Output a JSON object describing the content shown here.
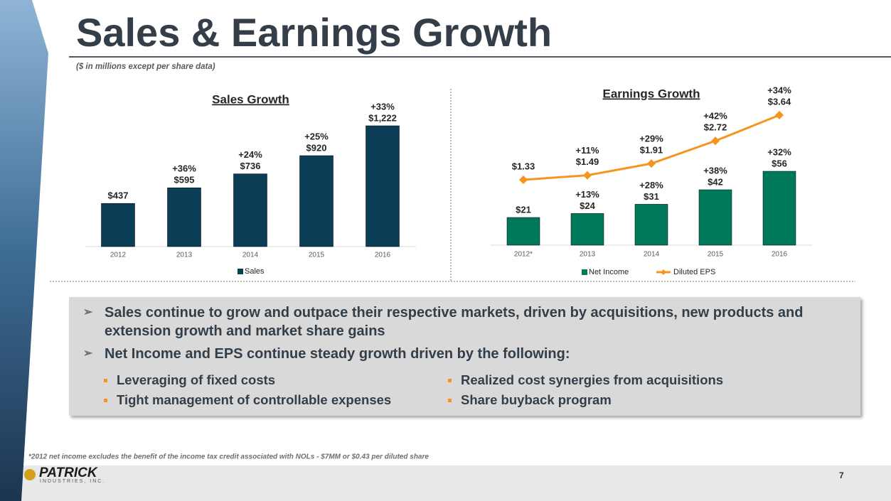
{
  "title": "Sales & Earnings Growth",
  "subtitle": "($ in millions except per share data)",
  "chart_data": [
    {
      "type": "bar",
      "title": "Sales Growth",
      "categories": [
        "2012",
        "2013",
        "2014",
        "2015",
        "2016"
      ],
      "legend": "bottom",
      "series": [
        {
          "name": "Sales",
          "color": "#0b3d57",
          "values": [
            437,
            595,
            736,
            920,
            1222
          ],
          "value_labels": [
            "$437",
            "$595",
            "$736",
            "$920",
            "$1,222"
          ],
          "growth_labels": [
            null,
            "+36%",
            "+24%",
            "+25%",
            "+33%"
          ]
        }
      ]
    },
    {
      "type": "bar",
      "title": "Earnings Growth",
      "categories": [
        "2012*",
        "2013",
        "2014",
        "2015",
        "2016"
      ],
      "legend": "bottom",
      "series": [
        {
          "name": "Net Income",
          "color": "#00785a",
          "values": [
            21,
            24,
            31,
            42,
            56
          ],
          "value_labels": [
            "$21",
            "$24",
            "$31",
            "$42",
            "$56"
          ],
          "growth_labels": [
            null,
            "+13%",
            "+28%",
            "+38%",
            "+32%"
          ]
        },
        {
          "name": "Diluted EPS",
          "color": "#f7941d",
          "type": "line",
          "axis": "y2",
          "values": [
            1.33,
            1.49,
            1.91,
            2.72,
            3.64
          ],
          "value_labels": [
            "$1.33",
            "$1.49",
            "$1.91",
            "$2.72",
            "$3.64"
          ],
          "growth_labels": [
            null,
            "+11%",
            "+29%",
            "+42%",
            "+34%"
          ]
        }
      ]
    }
  ],
  "bullets": [
    "Sales continue to grow and outpace their respective markets, driven by acquisitions, new products and extension growth and market share gains",
    "Net Income and EPS continue steady growth driven by the following:"
  ],
  "sub_bullets": [
    "Leveraging of fixed costs",
    "Tight management of controllable expenses",
    "Realized cost synergies from acquisitions",
    "Share buyback program"
  ],
  "footnote": "*2012 net income excludes the benefit of the income tax credit associated with NOLs - $7MM or $0.43 per diluted share",
  "logo": "PATRICK",
  "logo_sub": "INDUSTRIES, INC.",
  "page_number": "7"
}
